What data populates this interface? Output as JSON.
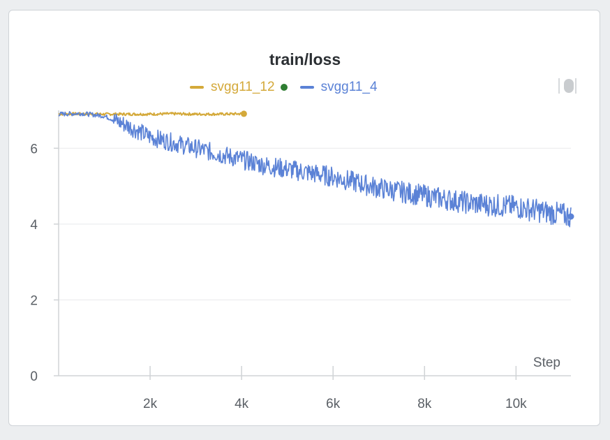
{
  "chart_data": {
    "type": "line",
    "title": "train/loss",
    "xlabel": "Step",
    "ylabel": "",
    "xlim": [
      0,
      11200
    ],
    "ylim": [
      0,
      7.0
    ],
    "x_ticks": [
      2000,
      4000,
      6000,
      8000,
      10000
    ],
    "x_tick_labels": [
      "2k",
      "4k",
      "6k",
      "8k",
      "10k"
    ],
    "y_ticks": [
      0,
      2,
      4,
      6
    ],
    "y_tick_labels": [
      "0",
      "2",
      "4",
      "6"
    ],
    "grid": true,
    "legend_position": "top",
    "series": [
      {
        "name": "svgg11_12",
        "color": "#d4a93a",
        "x": [
          0,
          500,
          1000,
          1500,
          2000,
          2500,
          3000,
          3500,
          4050
        ],
        "y": [
          6.9,
          6.91,
          6.9,
          6.9,
          6.9,
          6.91,
          6.9,
          6.9,
          6.91
        ]
      },
      {
        "name": "svgg11_4",
        "color": "#5b82d6",
        "x": [
          0,
          500,
          1000,
          1500,
          2000,
          2500,
          3000,
          3500,
          4000,
          4500,
          5000,
          5500,
          6000,
          6500,
          7000,
          7500,
          8000,
          8500,
          9000,
          9500,
          10000,
          10500,
          11000,
          11200
        ],
        "y": [
          6.9,
          6.92,
          6.85,
          6.6,
          6.3,
          6.15,
          6.0,
          5.85,
          5.7,
          5.55,
          5.45,
          5.35,
          5.25,
          5.1,
          4.95,
          4.85,
          4.75,
          4.65,
          4.55,
          4.5,
          4.45,
          4.35,
          4.25,
          4.2
        ]
      }
    ],
    "legend_marker_color": "#2e7d32"
  },
  "ui": {
    "toggle_icon": "toggle-switch-icon"
  }
}
